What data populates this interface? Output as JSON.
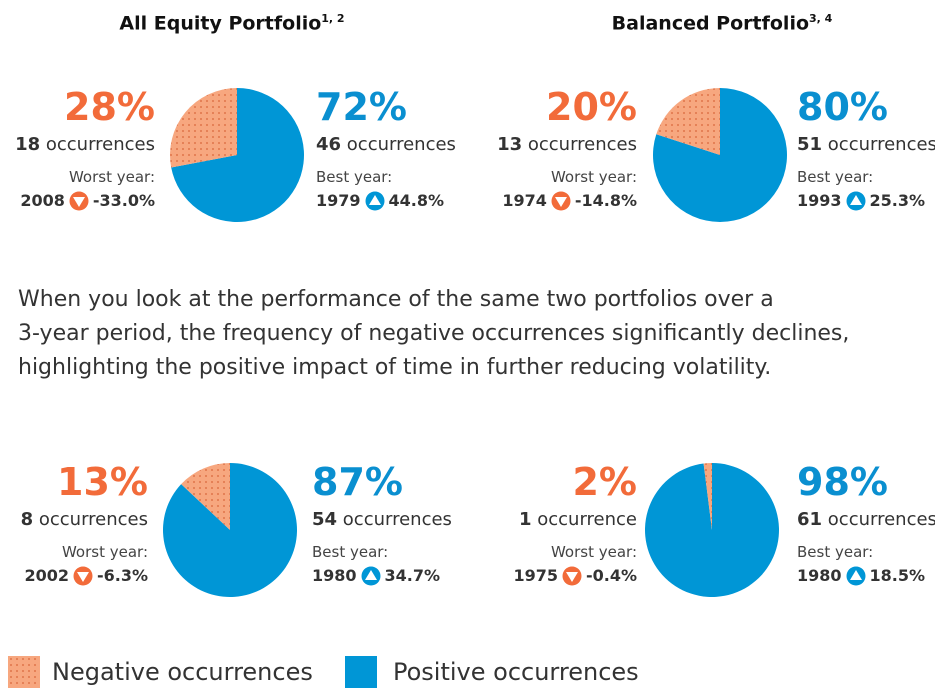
{
  "headings": [
    {
      "text": "All Equity Portfolio",
      "note": "1, 2"
    },
    {
      "text": "Balanced Portfolio",
      "note": "3, 4"
    }
  ],
  "paragraph": [
    "When you look at the performance of the same two portfolios over a",
    "3-year period, the frequency of negative occurrences significantly declines,",
    "highlighting the positive impact of time in further reducing volatility."
  ],
  "legend": {
    "names": [
      "Negative occurrences",
      "Positive occurrences"
    ],
    "colors": [
      "#f7a77f",
      "#0096d6"
    ]
  },
  "chart_data": [
    {
      "type": "pie",
      "values": [
        28,
        72
      ],
      "value_labels": [
        "28%",
        "72%"
      ],
      "occurrences": [
        18,
        46
      ],
      "occurrence_labels": [
        "occurrences",
        "occurrences"
      ],
      "worst": {
        "label": "Worst year:",
        "year": 2008,
        "return": "-33.0%"
      },
      "best": {
        "label": "Best year:",
        "year": 1979,
        "return": "44.8%"
      }
    },
    {
      "type": "pie",
      "values": [
        20,
        80
      ],
      "value_labels": [
        "20%",
        "80%"
      ],
      "occurrences": [
        13,
        51
      ],
      "occurrence_labels": [
        "occurrences",
        "occurrences"
      ],
      "worst": {
        "label": "Worst year:",
        "year": 1974,
        "return": "-14.8%"
      },
      "best": {
        "label": "Best year:",
        "year": 1993,
        "return": "25.3%"
      }
    },
    {
      "type": "pie",
      "values": [
        13,
        87
      ],
      "value_labels": [
        "13%",
        "87%"
      ],
      "occurrences": [
        8,
        54
      ],
      "occurrence_labels": [
        "occurrences",
        "occurrences"
      ],
      "worst": {
        "label": "Worst year:",
        "year": 2002,
        "return": "-6.3%"
      },
      "best": {
        "label": "Best year:",
        "year": 1980,
        "return": "34.7%"
      }
    },
    {
      "type": "pie",
      "values": [
        2,
        98
      ],
      "value_labels": [
        "2%",
        "98%"
      ],
      "occurrences": [
        1,
        61
      ],
      "occurrence_labels": [
        "occurrence",
        "occurrences"
      ],
      "worst": {
        "label": "Worst year:",
        "year": 1975,
        "return": "-0.4%"
      },
      "best": {
        "label": "Best year:",
        "year": 1980,
        "return": "18.5%"
      }
    }
  ]
}
